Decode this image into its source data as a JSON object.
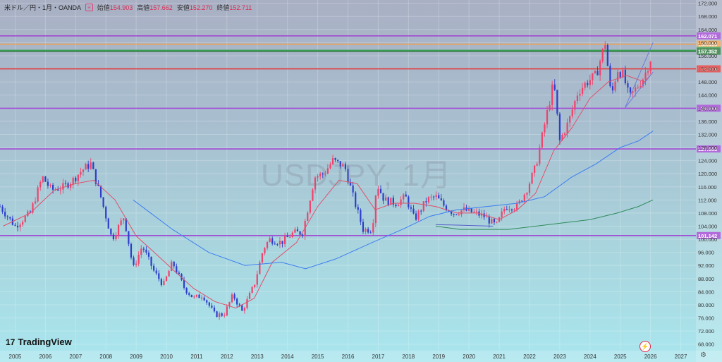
{
  "legend": {
    "symbol": "米ドル／円・1月・OANDA",
    "tag": "≡",
    "open_label": "始値",
    "open": "154.903",
    "high_label": "高値",
    "high": "157.662",
    "low_label": "安値",
    "low": "152.270",
    "close_label": "終値",
    "close": "152.711"
  },
  "watermark": "USDJPY, 1月",
  "brand": {
    "logo": "17",
    "name": "TradingView"
  },
  "settings_icon": "gear-icon",
  "jump_icon": "lightning-icon",
  "colors": {
    "up": "#f0426b",
    "down": "#2d3fc9",
    "ma_short": "#e0506a",
    "ma_mid": "#3d7ef0",
    "ma_long": "#2e8a5a"
  },
  "chart_data": {
    "type": "candlestick",
    "title": "",
    "xlabel": "",
    "ylabel": "",
    "x_range": [
      2004.5,
      2027.5
    ],
    "ylim": [
      66,
      173
    ],
    "y_ticks": [
      "172.000",
      "168.000",
      "164.000",
      "160.000",
      "156.000",
      "152.000",
      "148.000",
      "144.000",
      "140.000",
      "136.000",
      "132.000",
      "128.000",
      "124.000",
      "120.000",
      "116.000",
      "112.000",
      "108.000",
      "104.000",
      "100.000",
      "96.000",
      "92.000",
      "88.000",
      "84.000",
      "80.000",
      "76.000",
      "72.000",
      "68.000"
    ],
    "x_ticks": [
      "2005",
      "2006",
      "2007",
      "2008",
      "2009",
      "2010",
      "2011",
      "2012",
      "2013",
      "2014",
      "2015",
      "2016",
      "2017",
      "2018",
      "2019",
      "2020",
      "2021",
      "2022",
      "2023",
      "2024",
      "2025",
      "2026",
      "2027"
    ],
    "levels": [
      {
        "label": "162.071",
        "value": 162.071,
        "color": "#a24bd4"
      },
      {
        "label": "159.519",
        "value": 159.519,
        "color": "#f5a14a"
      },
      {
        "label": "157.658",
        "value": 157.658,
        "color": "#3aa556"
      },
      {
        "label": "157.352",
        "value": 157.352,
        "color": "#2f7a3e"
      },
      {
        "label": "152.001",
        "value": 152.001,
        "color": "#e23b3b"
      },
      {
        "label": "139.964",
        "value": 139.964,
        "color": "#a24bd4"
      },
      {
        "label": "127.553",
        "value": 127.553,
        "color": "#a24bd4"
      },
      {
        "label": "101.142",
        "value": 101.142,
        "color": "#a24bd4"
      }
    ],
    "price_path": [
      [
        2004.5,
        110
      ],
      [
        2005.0,
        104
      ],
      [
        2005.5,
        108
      ],
      [
        2005.9,
        119
      ],
      [
        2006.2,
        115
      ],
      [
        2006.6,
        116
      ],
      [
        2006.9,
        118
      ],
      [
        2007.2,
        121
      ],
      [
        2007.5,
        123
      ],
      [
        2007.8,
        114
      ],
      [
        2008.2,
        100
      ],
      [
        2008.6,
        107
      ],
      [
        2008.9,
        91
      ],
      [
        2009.2,
        98
      ],
      [
        2009.6,
        90
      ],
      [
        2009.9,
        86
      ],
      [
        2010.2,
        93
      ],
      [
        2010.6,
        85
      ],
      [
        2010.9,
        82
      ],
      [
        2011.2,
        83
      ],
      [
        2011.6,
        77
      ],
      [
        2011.9,
        77
      ],
      [
        2012.2,
        83
      ],
      [
        2012.5,
        78
      ],
      [
        2012.9,
        86
      ],
      [
        2013.2,
        97
      ],
      [
        2013.4,
        100
      ],
      [
        2013.8,
        99
      ],
      [
        2014.2,
        102
      ],
      [
        2014.5,
        102
      ],
      [
        2014.9,
        119
      ],
      [
        2015.2,
        120
      ],
      [
        2015.5,
        124
      ],
      [
        2015.9,
        122
      ],
      [
        2016.2,
        112
      ],
      [
        2016.5,
        103
      ],
      [
        2016.8,
        103
      ],
      [
        2016.95,
        117
      ],
      [
        2017.2,
        112
      ],
      [
        2017.6,
        111
      ],
      [
        2017.9,
        113
      ],
      [
        2018.2,
        106
      ],
      [
        2018.6,
        112
      ],
      [
        2018.9,
        113
      ],
      [
        2019.2,
        110
      ],
      [
        2019.5,
        108
      ],
      [
        2019.8,
        109
      ],
      [
        2020.2,
        108
      ],
      [
        2020.5,
        107
      ],
      [
        2020.9,
        104
      ],
      [
        2021.2,
        110
      ],
      [
        2021.6,
        110
      ],
      [
        2021.9,
        115
      ],
      [
        2022.2,
        122
      ],
      [
        2022.5,
        135
      ],
      [
        2022.8,
        148
      ],
      [
        2023.0,
        130
      ],
      [
        2023.3,
        136
      ],
      [
        2023.6,
        145
      ],
      [
        2023.9,
        148
      ],
      [
        2024.2,
        150
      ],
      [
        2024.5,
        160
      ],
      [
        2024.7,
        143
      ],
      [
        2024.9,
        152
      ],
      [
        2025.1,
        150
      ],
      [
        2025.3,
        143
      ],
      [
        2025.6,
        147
      ],
      [
        2025.8,
        150
      ],
      [
        2026.0,
        155
      ],
      [
        2026.08,
        152.7
      ]
    ],
    "ma_short": [
      [
        2004.6,
        104
      ],
      [
        2005.5,
        108
      ],
      [
        2006.3,
        115
      ],
      [
        2007.0,
        117
      ],
      [
        2007.6,
        118
      ],
      [
        2008.3,
        112
      ],
      [
        2009.0,
        101
      ],
      [
        2009.6,
        96
      ],
      [
        2010.3,
        90
      ],
      [
        2010.9,
        85
      ],
      [
        2011.6,
        81
      ],
      [
        2012.3,
        79
      ],
      [
        2012.9,
        82
      ],
      [
        2013.5,
        93
      ],
      [
        2014.3,
        99
      ],
      [
        2015.0,
        110
      ],
      [
        2015.7,
        118
      ],
      [
        2016.3,
        117
      ],
      [
        2016.9,
        109
      ],
      [
        2017.5,
        111
      ],
      [
        2018.2,
        111
      ],
      [
        2018.9,
        110
      ],
      [
        2019.6,
        108
      ],
      [
        2020.3,
        108
      ],
      [
        2021.0,
        106
      ],
      [
        2021.6,
        109
      ],
      [
        2022.2,
        114
      ],
      [
        2022.8,
        127
      ],
      [
        2023.4,
        134
      ],
      [
        2024.0,
        143
      ],
      [
        2024.6,
        148
      ],
      [
        2025.2,
        150
      ],
      [
        2025.8,
        148
      ],
      [
        2026.08,
        151
      ]
    ],
    "ma_mid": [
      [
        2008.9,
        112
      ],
      [
        2010.2,
        103
      ],
      [
        2011.4,
        96
      ],
      [
        2012.6,
        92
      ],
      [
        2013.8,
        93
      ],
      [
        2014.6,
        91
      ],
      [
        2015.6,
        94
      ],
      [
        2016.8,
        99
      ],
      [
        2017.8,
        103
      ],
      [
        2018.7,
        107
      ],
      [
        2019.6,
        109
      ],
      [
        2020.6,
        110
      ],
      [
        2021.6,
        111
      ],
      [
        2022.5,
        113
      ],
      [
        2023.4,
        119
      ],
      [
        2024.2,
        123
      ],
      [
        2025.0,
        128
      ],
      [
        2025.6,
        130
      ],
      [
        2026.08,
        133
      ]
    ],
    "ma_long": [
      [
        2018.9,
        104
      ],
      [
        2019.7,
        103
      ],
      [
        2020.5,
        103
      ],
      [
        2021.3,
        103
      ],
      [
        2022.2,
        104
      ],
      [
        2023.1,
        105
      ],
      [
        2024.0,
        106
      ],
      [
        2024.9,
        108
      ],
      [
        2025.6,
        110
      ],
      [
        2026.08,
        112
      ]
    ],
    "channel_lines": [
      [
        [
          2025.15,
          140
        ],
        [
          2026.08,
          160
        ]
      ],
      [
        [
          2025.15,
          140
        ],
        [
          2026.08,
          151
        ]
      ]
    ],
    "flat_line": [
      [
        2018.9,
        104.5
      ],
      [
        2020.8,
        104
      ]
    ]
  }
}
